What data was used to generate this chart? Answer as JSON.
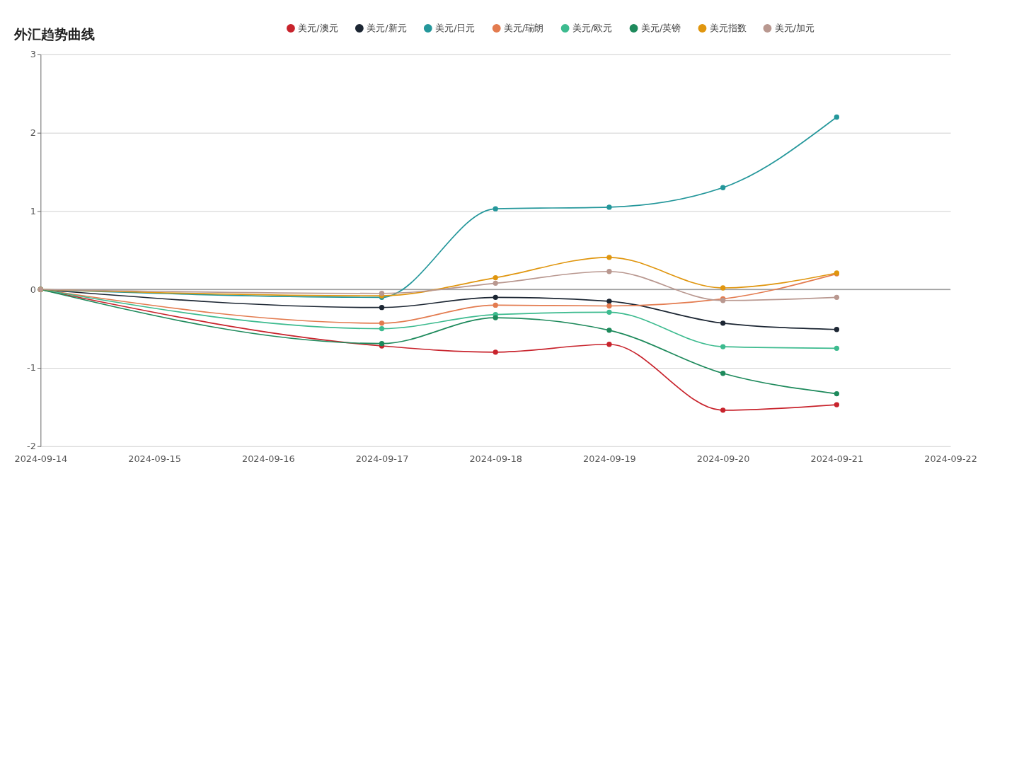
{
  "chart_data": {
    "type": "line",
    "title": "外汇趋势曲线",
    "x": [
      "2024-09-14",
      "2024-09-17",
      "2024-09-18",
      "2024-09-19",
      "2024-09-20",
      "2024-09-21"
    ],
    "xlim": [
      "2024-09-14",
      "2024-09-22"
    ],
    "xticks": [
      "2024-09-14",
      "2024-09-15",
      "2024-09-16",
      "2024-09-17",
      "2024-09-18",
      "2024-09-19",
      "2024-09-20",
      "2024-09-21",
      "2024-09-22"
    ],
    "ylim": [
      -2,
      3
    ],
    "yticks": [
      -2,
      -1,
      0,
      1,
      2,
      3
    ],
    "series": [
      {
        "name": "美元/澳元",
        "color": "#c8232c",
        "values": [
          0,
          -0.72,
          -0.8,
          -0.7,
          -1.54,
          -1.47
        ]
      },
      {
        "name": "美元/新元",
        "color": "#1c2633",
        "values": [
          0,
          -0.23,
          -0.1,
          -0.15,
          -0.43,
          -0.51
        ]
      },
      {
        "name": "美元/日元",
        "color": "#24979b",
        "values": [
          0,
          -0.1,
          1.03,
          1.05,
          1.3,
          2.2
        ]
      },
      {
        "name": "美元/瑞朗",
        "color": "#e37b4f",
        "values": [
          0,
          -0.43,
          -0.2,
          -0.21,
          -0.12,
          0.2
        ]
      },
      {
        "name": "美元/欧元",
        "color": "#3dbb8f",
        "values": [
          0,
          -0.5,
          -0.32,
          -0.29,
          -0.73,
          -0.75
        ]
      },
      {
        "name": "美元/英镑",
        "color": "#1e8a5c",
        "values": [
          0,
          -0.69,
          -0.36,
          -0.52,
          -1.07,
          -1.33
        ]
      },
      {
        "name": "美元指数",
        "color": "#e0960f",
        "values": [
          0,
          -0.08,
          0.15,
          0.41,
          0.02,
          0.21
        ]
      },
      {
        "name": "美元/加元",
        "color": "#b99890",
        "values": [
          0,
          -0.05,
          0.08,
          0.23,
          -0.14,
          -0.1
        ]
      }
    ],
    "ref_lines": [
      {
        "axis": "y",
        "value": 0,
        "color": "#8a8a8a"
      }
    ],
    "grid": "y",
    "legend": "top",
    "marker": "circle",
    "line_style": "solid"
  }
}
